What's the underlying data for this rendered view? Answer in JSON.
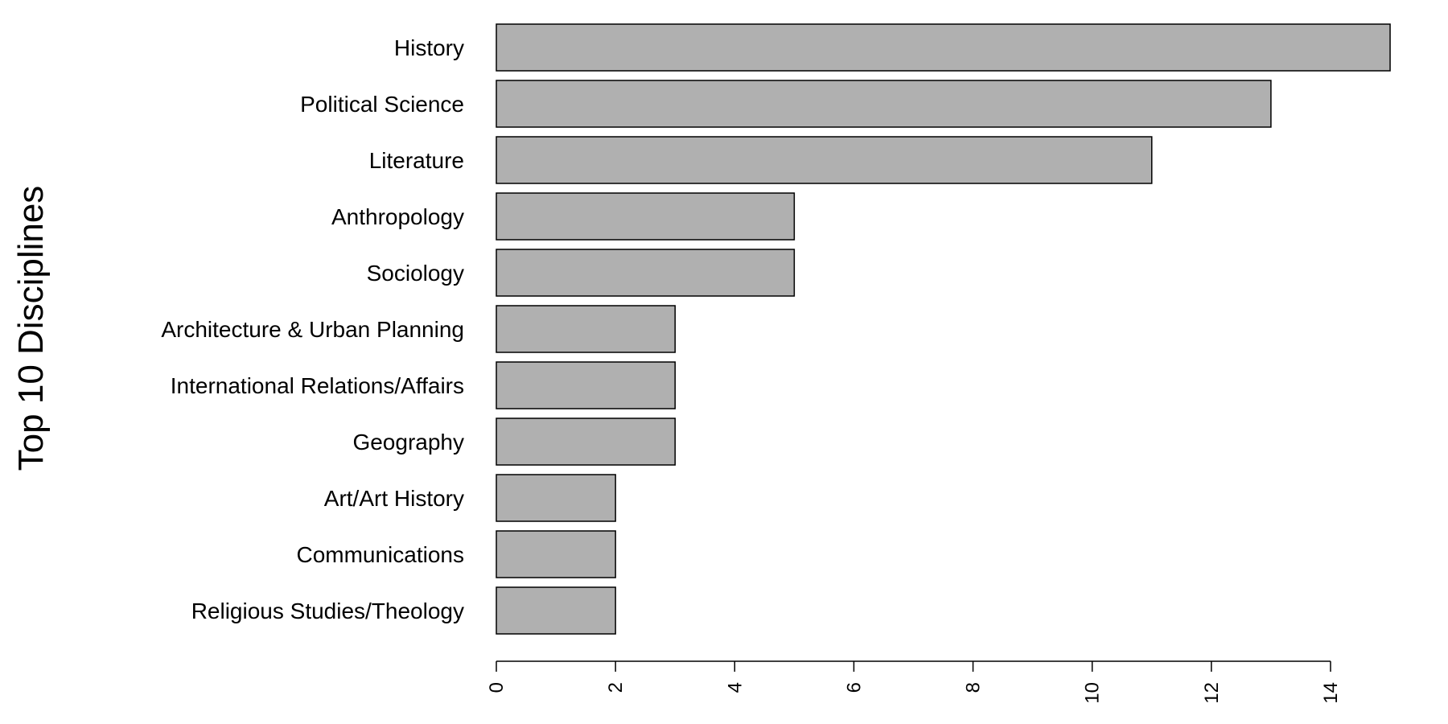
{
  "chart_data": {
    "type": "bar",
    "orientation": "horizontal",
    "title": "",
    "xlabel": "",
    "ylabel": "Top 10 Disciplines",
    "categories": [
      "History",
      "Political Science",
      "Literature",
      "Anthropology",
      "Sociology",
      "Architecture & Urban Planning",
      "International Relations/Affairs",
      "Geography",
      "Art/Art History",
      "Communications",
      "Religious Studies/Theology"
    ],
    "values": [
      15,
      13,
      11,
      5,
      5,
      3,
      3,
      3,
      2,
      2,
      2
    ],
    "xlim": [
      0,
      15
    ],
    "x_ticks": [
      0,
      2,
      4,
      6,
      8,
      10,
      12,
      14
    ],
    "x_tick_labels": [
      "0",
      "2",
      "4",
      "6",
      "8",
      "10",
      "12",
      "14"
    ],
    "grid": false,
    "legend": "none",
    "colors": {
      "bar_fill": "#b0b0b0",
      "bar_stroke": "#000000",
      "axis": "#000000",
      "text": "#000000"
    }
  }
}
